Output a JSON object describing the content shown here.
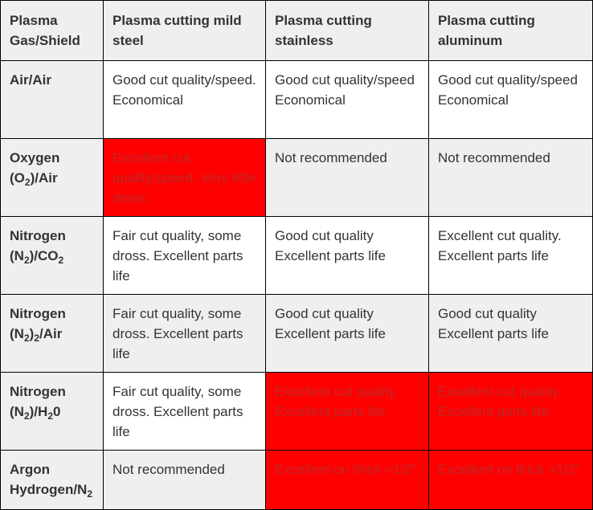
{
  "headers": [
    "Plasma Gas/Shield",
    "Plasma cutting mild steel",
    "Plasma cutting stainless",
    "Plasma cutting aluminum"
  ],
  "colors": {
    "highlight": "#ff0000",
    "highlight_text": "#bb2a2a",
    "header_bg": "#efefef",
    "border": "#000000"
  },
  "rows": [
    {
      "gas": {
        "a": "Air/Air"
      },
      "cells": [
        "Good cut quality/speed. Economical",
        "Good cut quality/speed Economical",
        "Good cut quality/speed Economical"
      ]
    },
    {
      "gas": {
        "a": "Oxygen (O",
        "sub1": "2",
        "b": ")/Air"
      },
      "cells": [
        "Excellent cut quality/speed. Very little dross",
        "Not recommended",
        "Not recommended"
      ]
    },
    {
      "gas": {
        "a": "Nitrogen (N",
        "sub1": "2",
        "b": ")/CO",
        "sub2": "2"
      },
      "cells": [
        "Fair cut quality, some dross. Excellent parts life",
        "Good cut quality Excellent parts life",
        "Excellent cut quality. Excellent parts life"
      ]
    },
    {
      "gas": {
        "a": "Nitrogen (N",
        "sub1": "2",
        "b": ")",
        "sub2": "2",
        "c": "/Air"
      },
      "cells": [
        "Fair cut quality, some dross. Excellent parts life",
        "Good cut quality Excellent parts life",
        "Good cut quality Excellent parts life"
      ]
    },
    {
      "gas": {
        "a": "Nitrogen (N",
        "sub1": "2",
        "b": ")/H",
        "sub2": "2",
        "c": "0"
      },
      "cells": [
        "Fair cut quality, some dross. Excellent parts life",
        "Excellent cut quality. Excellent parts life",
        "Excellent cut quality. Excellent parts life"
      ]
    },
    {
      "gas": {
        "a": "Argon Hydrogen/N",
        "sub1": "2"
      },
      "cells": [
        "Not recommended",
        "Excellent on thick >1/2\"",
        "Excellent on thick >1/2\""
      ]
    }
  ]
}
